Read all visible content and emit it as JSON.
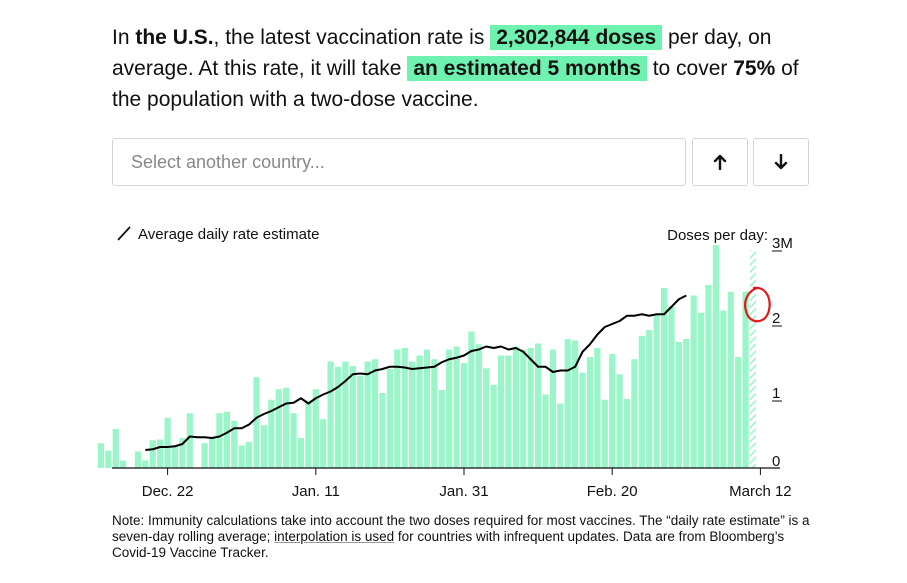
{
  "summary": {
    "prefix": "In ",
    "country": "the U.S.",
    "mid1": ", the latest vaccination rate is ",
    "rate": "2,302,844 doses",
    "mid2": " per day, on average. At this rate, it will take ",
    "duration": "an estimated 5 months",
    "mid3": " to cover ",
    "percent": "75%",
    "suffix": " of the population with a two-dose vaccine."
  },
  "selector": {
    "placeholder": "Select another country...",
    "up_icon": "arrow-up-icon",
    "down_icon": "arrow-down-icon"
  },
  "colors": {
    "bar": "#9af5c9",
    "highlight": "#6ff2b0",
    "line": "#000000",
    "annotation": "#e01818"
  },
  "chart_data": {
    "type": "bar",
    "title": "",
    "legend": "Average daily rate estimate",
    "ylabel": "Doses per day:",
    "ylim": [
      0,
      3
    ],
    "yticks": [
      0,
      1,
      2,
      3
    ],
    "ytick_labels": [
      "0",
      "1",
      "2",
      "3M"
    ],
    "x_labels": [
      {
        "label": "Dec. 22",
        "day": 9
      },
      {
        "label": "Jan. 11",
        "day": 29
      },
      {
        "label": "Jan. 31",
        "day": 49
      },
      {
        "label": "Feb. 20",
        "day": 69
      },
      {
        "label": "March 12",
        "day": 89
      }
    ],
    "series": [
      {
        "name": "Daily doses (M)",
        "values": [
          0.33,
          0.23,
          0.52,
          0.1,
          0.0,
          0.22,
          0.1,
          0.37,
          0.38,
          0.67,
          0.29,
          0.4,
          0.73,
          0.0,
          0.33,
          0.4,
          0.73,
          0.75,
          0.63,
          0.3,
          0.35,
          1.21,
          0.57,
          0.91,
          1.05,
          1.07,
          0.73,
          0.4,
          0.9,
          1.05,
          0.65,
          1.42,
          1.35,
          1.42,
          1.36,
          1.23,
          1.42,
          1.45,
          1.0,
          1.32,
          1.58,
          1.6,
          1.42,
          1.5,
          1.58,
          1.45,
          1.04,
          1.58,
          1.62,
          1.4,
          1.82,
          1.65,
          1.33,
          1.11,
          1.5,
          1.5,
          1.62,
          1.58,
          1.6,
          1.66,
          0.98,
          1.58,
          0.86,
          1.72,
          1.7,
          1.27,
          1.48,
          1.6,
          0.91,
          1.52,
          1.25,
          0.92,
          1.45,
          1.76,
          1.84,
          2.05,
          2.4,
          2.15,
          1.68,
          1.72,
          2.3,
          2.07,
          2.44,
          2.97,
          2.1,
          2.35,
          1.48,
          2.35,
          2.9
        ]
      },
      {
        "name": "Average daily rate estimate (M)",
        "start_day": 6,
        "values": [
          0.24,
          0.25,
          0.28,
          0.28,
          0.29,
          0.32,
          0.42,
          0.41,
          0.41,
          0.4,
          0.42,
          0.47,
          0.53,
          0.53,
          0.58,
          0.67,
          0.72,
          0.76,
          0.81,
          0.86,
          0.87,
          0.93,
          0.86,
          0.93,
          0.98,
          1.02,
          1.08,
          1.16,
          1.25,
          1.26,
          1.25,
          1.3,
          1.32,
          1.35,
          1.35,
          1.34,
          1.32,
          1.33,
          1.34,
          1.35,
          1.41,
          1.45,
          1.47,
          1.5,
          1.56,
          1.58,
          1.62,
          1.6,
          1.62,
          1.58,
          1.6,
          1.55,
          1.45,
          1.35,
          1.35,
          1.28,
          1.3,
          1.3,
          1.35,
          1.55,
          1.65,
          1.78,
          1.88,
          1.92,
          1.96,
          2.03,
          2.03,
          2.05,
          2.03,
          2.05,
          2.05,
          2.15,
          2.25,
          2.3
        ]
      }
    ],
    "annotation": "red-circle-highlight"
  },
  "note": {
    "part1": "Note: Immunity calculations take into account the two doses required for most vaccines. The “daily rate estimate” is a seven-day rolling average; ",
    "link": "interpolation is used",
    "part2": " for countries with infrequent updates. Data are from Bloomberg’s Covid-19 Vaccine Tracker."
  }
}
